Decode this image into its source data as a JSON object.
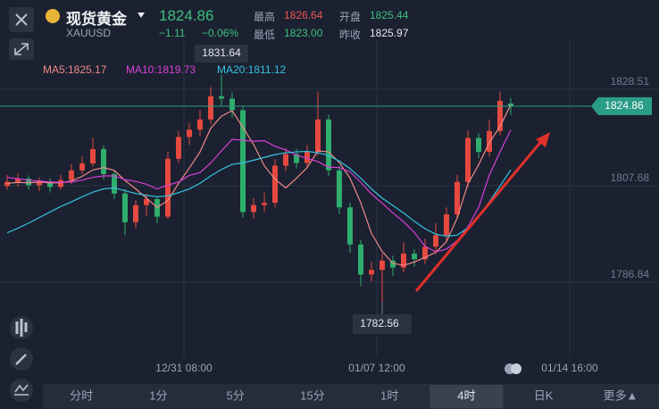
{
  "header": {
    "title": "现货黄金",
    "symbol": "XAUUSD",
    "price": "1824.86",
    "change": "−1.11",
    "change_pct": "−0.06%",
    "stats": [
      {
        "label": "最高",
        "value": "1826.64"
      },
      {
        "label": "开盘",
        "value": "1825.44"
      },
      {
        "label": "最低",
        "value": "1823.00"
      },
      {
        "label": "昨收",
        "value": "1825.97"
      }
    ]
  },
  "chart_data": {
    "type": "candlestick",
    "up_color": "#e5493f",
    "down_color": "#2fae6d",
    "open": [
      1807.6,
      1808.5,
      1809.2,
      1807.8,
      1808.6,
      1807.4,
      1808.9,
      1811.0,
      1812.5,
      1815.6,
      1810.2,
      1806.0,
      1799.8,
      1803.5,
      1804.8,
      1801.0,
      1813.5,
      1818.2,
      1819.8,
      1822.0,
      1827.0,
      1826.5,
      1824.0,
      1802.0,
      1803.5,
      1804.0,
      1812.0,
      1814.5,
      1812.6,
      1815.0,
      1822.0,
      1811.0,
      1803.0,
      1795.0,
      1788.5,
      1789.5,
      1791.5,
      1790.0,
      1793.0,
      1791.8,
      1794.5,
      1797.0,
      1801.5,
      1808.5,
      1818.0,
      1815.0,
      1819.5,
      1825.44
    ],
    "high": [
      1810.0,
      1810.4,
      1809.9,
      1809.5,
      1809.3,
      1810.1,
      1812.3,
      1814.0,
      1818.1,
      1816.4,
      1811.0,
      1807.0,
      1804.6,
      1806.0,
      1805.5,
      1815.0,
      1819.5,
      1821.2,
      1824.0,
      1829.0,
      1831.64,
      1827.8,
      1825.0,
      1805.0,
      1806.2,
      1813.4,
      1815.8,
      1815.6,
      1816.5,
      1828.0,
      1823.0,
      1812.0,
      1804.0,
      1796.0,
      1791.2,
      1793.0,
      1792.6,
      1795.5,
      1794.0,
      1796.2,
      1799.6,
      1803.0,
      1810.0,
      1819.6,
      1819.0,
      1822.0,
      1828.0,
      1826.64
    ],
    "low": [
      1806.8,
      1807.5,
      1806.9,
      1806.5,
      1806.2,
      1806.8,
      1808.0,
      1810.2,
      1811.8,
      1809.0,
      1804.8,
      1797.0,
      1798.5,
      1801.2,
      1799.6,
      1800.5,
      1812.6,
      1816.5,
      1818.4,
      1821.0,
      1824.8,
      1822.4,
      1800.8,
      1800.6,
      1802.0,
      1803.0,
      1810.8,
      1811.4,
      1811.6,
      1814.2,
      1809.8,
      1801.5,
      1793.2,
      1786.0,
      1787.0,
      1782.56,
      1788.2,
      1789.0,
      1790.2,
      1790.8,
      1793.0,
      1795.8,
      1800.6,
      1807.4,
      1813.6,
      1814.0,
      1818.6,
      1823.0
    ],
    "close": [
      1808.5,
      1809.2,
      1807.8,
      1808.6,
      1807.4,
      1808.9,
      1811.0,
      1812.5,
      1815.6,
      1810.2,
      1806.0,
      1799.8,
      1803.5,
      1804.8,
      1801.0,
      1813.5,
      1818.2,
      1819.8,
      1822.0,
      1827.0,
      1826.5,
      1824.0,
      1802.0,
      1803.5,
      1804.0,
      1812.0,
      1814.5,
      1812.6,
      1815.0,
      1822.0,
      1811.0,
      1803.0,
      1795.0,
      1788.5,
      1789.5,
      1791.5,
      1790.0,
      1793.0,
      1791.8,
      1794.5,
      1797.0,
      1801.5,
      1808.5,
      1818.0,
      1815.0,
      1819.5,
      1826.0,
      1824.86
    ],
    "series": [
      {
        "name": "MA5:1825.17",
        "color": "#f08a8a",
        "values": [
          1808.2,
          1808.4,
          1808.3,
          1808.5,
          1808.3,
          1808.3,
          1808.7,
          1809.7,
          1811.1,
          1811.6,
          1811.0,
          1808.8,
          1807.0,
          1805.0,
          1803.0,
          1804.5,
          1808.2,
          1811.5,
          1815.0,
          1820.1,
          1822.7,
          1823.9,
          1820.3,
          1816.6,
          1812.0,
          1809.1,
          1807.2,
          1809.3,
          1811.6,
          1815.2,
          1815.0,
          1812.7,
          1809.3,
          1804.0,
          1797.4,
          1793.5,
          1790.9,
          1790.5,
          1791.2,
          1792.2,
          1793.3,
          1795.6,
          1800.7,
          1808.1,
          1812.2,
          1817.0,
          1820.5,
          1825.17
        ]
      },
      {
        "name": "MA10:1819.73",
        "color": "#d83fd8",
        "values": [
          1809.5,
          1809.2,
          1808.9,
          1808.7,
          1808.5,
          1808.4,
          1808.5,
          1808.9,
          1809.5,
          1809.8,
          1809.8,
          1809.0,
          1808.6,
          1808.0,
          1807.0,
          1807.8,
          1808.5,
          1809.9,
          1810.5,
          1812.6,
          1815.2,
          1817.7,
          1817.5,
          1817.3,
          1817.4,
          1816.2,
          1815.4,
          1814.3,
          1813.6,
          1812.9,
          1811.7,
          1811.6,
          1810.7,
          1808.4,
          1805.9,
          1803.9,
          1801.8,
          1799.9,
          1797.6,
          1794.6,
          1793.4,
          1794.0,
          1795.8,
          1798.8,
          1803.0,
          1810.0,
          1815.0,
          1819.73
        ]
      },
      {
        "name": "MA20:1811.12",
        "color": "#35c3e0",
        "values": [
          1797.5,
          1798.5,
          1799.6,
          1800.8,
          1802.0,
          1803.2,
          1804.2,
          1805.3,
          1806.3,
          1807.0,
          1807.2,
          1806.6,
          1806.0,
          1805.6,
          1805.3,
          1805.5,
          1806.2,
          1807.0,
          1808.2,
          1809.8,
          1811.2,
          1812.3,
          1812.6,
          1813.2,
          1813.8,
          1814.4,
          1814.8,
          1815.0,
          1815.1,
          1814.8,
          1814.2,
          1813.0,
          1811.4,
          1809.3,
          1807.0,
          1805.0,
          1803.4,
          1801.8,
          1800.0,
          1798.4,
          1797.2,
          1796.8,
          1797.0,
          1798.6,
          1801.0,
          1804.2,
          1807.6,
          1811.12
        ]
      }
    ],
    "ylim": [
      1770.64,
      1839.12
    ],
    "yticks": [
      1786.84,
      1807.68,
      1828.51
    ],
    "xticks": [
      {
        "value": 16.5,
        "label": "12/31 08:00"
      },
      {
        "value": 34.5,
        "label": "01/07 12:00"
      },
      {
        "value": 52.5,
        "label": "01/14 16:00"
      }
    ],
    "grid": true
  },
  "tabs": [
    "分时",
    "1分",
    "5分",
    "15分",
    "1时",
    "4时",
    "日K",
    "更多▲"
  ],
  "active_tab": "4时"
}
